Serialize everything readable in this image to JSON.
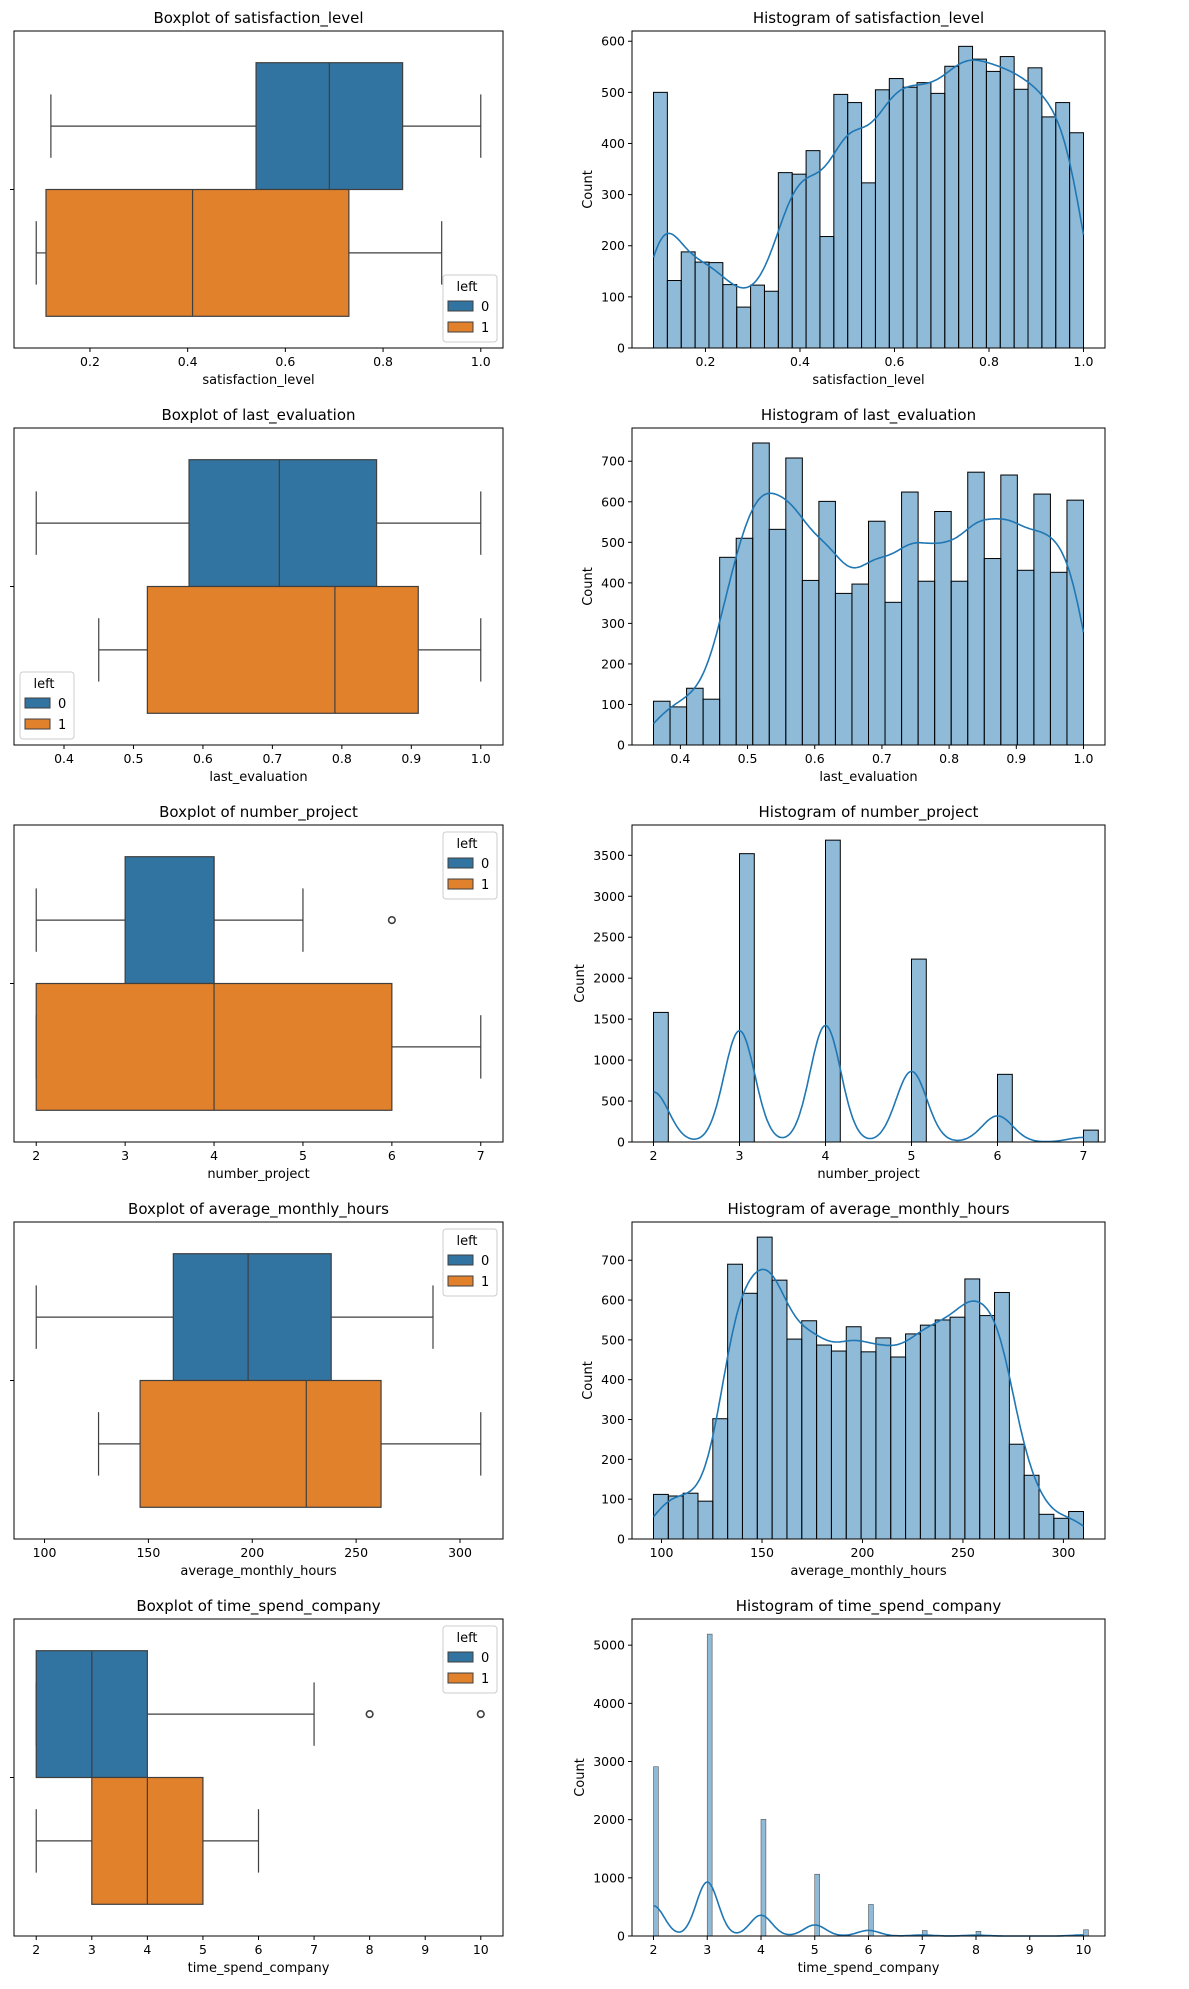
{
  "colors": {
    "left_0": "#3274a1",
    "left_1": "#e1812c",
    "hist_fill": "#1f77b4",
    "kde_line": "#1f77b4",
    "box_edge": "#3f3f3f"
  },
  "legend": {
    "title": "left",
    "labels": [
      "0",
      "1"
    ]
  },
  "chart_data": [
    {
      "type": "boxplot",
      "title": "Boxplot of satisfaction_level",
      "xlabel": "satisfaction_level",
      "xlim": [
        0.0445,
        1.0455
      ],
      "xticks": [
        "0.2",
        "0.4",
        "0.6",
        "0.8",
        "1.0"
      ],
      "legend_position": "lower-right",
      "groups": [
        {
          "label": "0",
          "whisker_low": 0.12,
          "q1": 0.54,
          "median": 0.69,
          "q3": 0.84,
          "whisker_high": 1.0,
          "outliers": []
        },
        {
          "label": "1",
          "whisker_low": 0.09,
          "q1": 0.11,
          "median": 0.41,
          "q3": 0.73,
          "whisker_high": 0.92,
          "outliers": []
        }
      ]
    },
    {
      "type": "bar",
      "title": "Histogram of satisfaction_level",
      "xlabel": "satisfaction_level",
      "ylabel": "Count",
      "bin_start": 0.09,
      "bin_end": 1.0,
      "kde": true,
      "xlim": [
        0.0445,
        1.0455
      ],
      "ylim": [
        0,
        620
      ],
      "xticks": [
        "0.2",
        "0.4",
        "0.6",
        "0.8",
        "1.0"
      ],
      "yticks": [
        "0",
        "100",
        "200",
        "300",
        "400",
        "500",
        "600"
      ],
      "values": [
        500,
        132,
        188,
        168,
        167,
        124,
        80,
        123,
        111,
        343,
        340,
        386,
        218,
        496,
        480,
        323,
        505,
        527,
        510,
        519,
        498,
        551,
        590,
        565,
        541,
        570,
        506,
        548,
        452,
        480,
        421
      ]
    },
    {
      "type": "boxplot",
      "title": "Boxplot of last_evaluation",
      "xlabel": "last_evaluation",
      "xlim": [
        0.328,
        1.032
      ],
      "xticks": [
        "0.4",
        "0.5",
        "0.6",
        "0.7",
        "0.8",
        "0.9",
        "1.0"
      ],
      "legend_position": "lower-left",
      "groups": [
        {
          "label": "0",
          "whisker_low": 0.36,
          "q1": 0.58,
          "median": 0.71,
          "q3": 0.85,
          "whisker_high": 1.0,
          "outliers": []
        },
        {
          "label": "1",
          "whisker_low": 0.45,
          "q1": 0.52,
          "median": 0.79,
          "q3": 0.91,
          "whisker_high": 1.0,
          "outliers": []
        }
      ]
    },
    {
      "type": "bar",
      "title": "Histogram of last_evaluation",
      "xlabel": "last_evaluation",
      "ylabel": "Count",
      "bin_start": 0.36,
      "bin_end": 1.0,
      "kde": true,
      "xlim": [
        0.328,
        1.032
      ],
      "ylim": [
        0,
        782
      ],
      "xticks": [
        "0.4",
        "0.5",
        "0.6",
        "0.7",
        "0.8",
        "0.9",
        "1.0"
      ],
      "yticks": [
        "0",
        "100",
        "200",
        "300",
        "400",
        "500",
        "600",
        "700"
      ],
      "values": [
        108,
        94,
        140,
        113,
        463,
        510,
        745,
        532,
        708,
        406,
        601,
        374,
        397,
        552,
        352,
        624,
        404,
        576,
        404,
        673,
        460,
        666,
        431,
        619,
        426,
        604
      ]
    },
    {
      "type": "boxplot",
      "title": "Boxplot of number_project",
      "xlabel": "number_project",
      "xlim": [
        1.75,
        7.25
      ],
      "xticks": [
        "2",
        "3",
        "4",
        "5",
        "6",
        "7"
      ],
      "legend_position": "upper-right",
      "groups": [
        {
          "label": "0",
          "whisker_low": 2,
          "q1": 3,
          "median": 4,
          "q3": 4,
          "whisker_high": 5,
          "outliers": [
            6
          ]
        },
        {
          "label": "1",
          "whisker_low": 2,
          "q1": 2,
          "median": 4,
          "q3": 6,
          "whisker_high": 7,
          "outliers": []
        }
      ]
    },
    {
      "type": "bar",
      "title": "Histogram of number_project",
      "xlabel": "number_project",
      "ylabel": "Count",
      "discrete_x": [
        2,
        3,
        4,
        5,
        6,
        7
      ],
      "bin_width": 0.172,
      "kde": true,
      "xlim": [
        1.75,
        7.25
      ],
      "ylim": [
        0,
        3870
      ],
      "xticks": [
        "2",
        "3",
        "4",
        "5",
        "6",
        "7"
      ],
      "yticks": [
        "0",
        "500",
        "1000",
        "1500",
        "2000",
        "2500",
        "3000",
        "3500"
      ],
      "values": [
        1582,
        3520,
        3685,
        2233,
        826,
        145
      ]
    },
    {
      "type": "boxplot",
      "title": "Boxplot of average_monthly_hours",
      "xlabel": "average_monthly_hours",
      "xlim": [
        85.3,
        320.7
      ],
      "xticks": [
        "100",
        "150",
        "200",
        "250",
        "300"
      ],
      "legend_position": "upper-right",
      "groups": [
        {
          "label": "0",
          "whisker_low": 96,
          "q1": 162,
          "median": 198,
          "q3": 238,
          "whisker_high": 287,
          "outliers": []
        },
        {
          "label": "1",
          "whisker_low": 126,
          "q1": 146,
          "median": 226,
          "q3": 262,
          "whisker_high": 310,
          "outliers": []
        }
      ]
    },
    {
      "type": "bar",
      "title": "Histogram of average_monthly_hours",
      "xlabel": "average_monthly_hours",
      "ylabel": "Count",
      "bin_start": 96,
      "bin_end": 310,
      "kde": true,
      "xlim": [
        85.3,
        320.7
      ],
      "ylim": [
        0,
        796
      ],
      "xticks": [
        "100",
        "150",
        "200",
        "250",
        "300"
      ],
      "yticks": [
        "0",
        "100",
        "200",
        "300",
        "400",
        "500",
        "600",
        "700"
      ],
      "values": [
        112,
        108,
        115,
        95,
        302,
        690,
        617,
        758,
        650,
        502,
        548,
        487,
        472,
        533,
        470,
        505,
        457,
        515,
        537,
        550,
        557,
        653,
        561,
        619,
        238,
        160,
        62,
        52,
        69
      ]
    },
    {
      "type": "boxplot",
      "title": "Boxplot of time_spend_company",
      "xlabel": "time_spend_company",
      "xlim": [
        1.6,
        10.4
      ],
      "xticks": [
        "2",
        "3",
        "4",
        "5",
        "6",
        "7",
        "8",
        "9",
        "10"
      ],
      "legend_position": "upper-right",
      "groups": [
        {
          "label": "0",
          "whisker_low": 2,
          "q1": 2,
          "median": 3,
          "q3": 4,
          "whisker_high": 7,
          "outliers": [
            8,
            10
          ]
        },
        {
          "label": "1",
          "whisker_low": 2,
          "q1": 3,
          "median": 4,
          "q3": 5,
          "whisker_high": 6,
          "outliers": []
        }
      ]
    },
    {
      "type": "bar",
      "title": "Histogram of time_spend_company",
      "xlabel": "time_spend_company",
      "ylabel": "Count",
      "discrete_x": [
        2,
        3,
        4,
        5,
        6,
        7,
        8,
        10
      ],
      "bin_width": 0.091,
      "kde": true,
      "xlim": [
        1.6,
        10.4
      ],
      "ylim": [
        0,
        5450
      ],
      "xticks": [
        "2",
        "3",
        "4",
        "5",
        "6",
        "7",
        "8",
        "9",
        "10"
      ],
      "yticks": [
        "0",
        "1000",
        "2000",
        "3000",
        "4000",
        "5000"
      ],
      "values": [
        2910,
        5190,
        2005,
        1062,
        542,
        94,
        81,
        107
      ]
    }
  ]
}
